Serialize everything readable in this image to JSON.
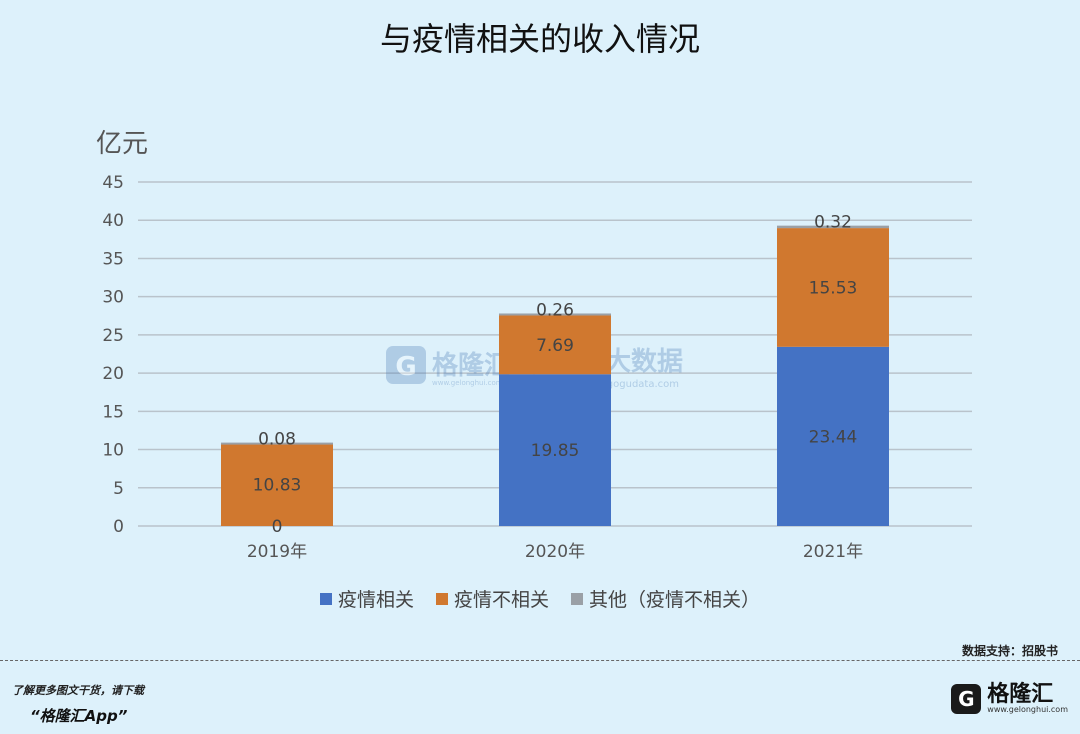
{
  "title": "与疫情相关的收入情况",
  "source_text": "数据支持：招股书",
  "footer": {
    "promo": "了解更多图文干货，请下载",
    "app": "“格隆汇App”"
  },
  "brand": {
    "logo_letter": "G",
    "name": "格隆汇",
    "url": "www.gelonghui.com"
  },
  "watermark": {
    "left_logo": "G",
    "left_name": "格隆汇",
    "left_url": "www.gelonghui.com",
    "right_name": "勾股大数据",
    "right_url": "www.gogudata.com"
  },
  "chart_data": {
    "type": "bar",
    "stacked": true,
    "title": "与疫情相关的收入情况",
    "ylabel": "亿元",
    "xlabel": "",
    "categories": [
      "2019年",
      "2020年",
      "2021年"
    ],
    "ylim": [
      0,
      45
    ],
    "yticks": [
      0,
      5,
      10,
      15,
      20,
      25,
      30,
      35,
      40,
      45
    ],
    "grid": true,
    "legend_position": "bottom",
    "series": [
      {
        "name": "疫情相关",
        "values": [
          0,
          19.85,
          23.44
        ],
        "labels": [
          "0",
          "19.85",
          "23.44"
        ],
        "color": "#4472c4"
      },
      {
        "name": "疫情不相关",
        "values": [
          10.83,
          7.69,
          15.53
        ],
        "labels": [
          "10.83",
          "7.69",
          "15.53"
        ],
        "color": "#d0782f"
      },
      {
        "name": "其他（疫情不相关）",
        "values": [
          0.08,
          0.26,
          0.32
        ],
        "labels": [
          "0.08",
          "0.26",
          "0.32"
        ],
        "color": "#9aa0a6"
      }
    ]
  }
}
